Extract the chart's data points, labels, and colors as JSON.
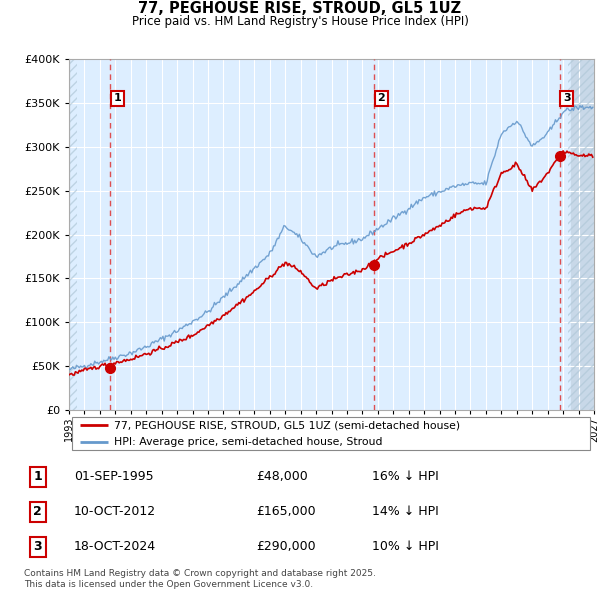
{
  "title": "77, PEGHOUSE RISE, STROUD, GL5 1UZ",
  "subtitle": "Price paid vs. HM Land Registry's House Price Index (HPI)",
  "ylim": [
    0,
    400000
  ],
  "xlim_start": 1993,
  "xlim_end": 2027,
  "sales": [
    {
      "num": 1,
      "date_str": "01-SEP-1995",
      "date_x": 1995.67,
      "price": 48000,
      "hpi_pct": "16% ↓ HPI"
    },
    {
      "num": 2,
      "date_str": "10-OCT-2012",
      "date_x": 2012.78,
      "price": 165000,
      "hpi_pct": "14% ↓ HPI"
    },
    {
      "num": 3,
      "date_str": "18-OCT-2024",
      "date_x": 2024.79,
      "price": 290000,
      "hpi_pct": "10% ↓ HPI"
    }
  ],
  "legend_line1": "77, PEGHOUSE RISE, STROUD, GL5 1UZ (semi-detached house)",
  "legend_line2": "HPI: Average price, semi-detached house, Stroud",
  "footnote": "Contains HM Land Registry data © Crown copyright and database right 2025.\nThis data is licensed under the Open Government Licence v3.0.",
  "chart_bg": "#ddeeff",
  "grid_color": "#ffffff",
  "sale_color": "#cc0000",
  "hpi_color": "#6699cc",
  "vline_color": "#dd3333",
  "hatch_bg": "#c8d8e8",
  "label_box_color": "#cc0000",
  "yticks": [
    0,
    50000,
    100000,
    150000,
    200000,
    250000,
    300000,
    350000,
    400000
  ],
  "hpi_key_years": [
    1993,
    1995,
    1997,
    1998,
    2000,
    2002,
    2004,
    2006,
    2007,
    2008,
    2009,
    2010,
    2012,
    2014,
    2016,
    2018,
    2019,
    2020,
    2021,
    2022,
    2023,
    2024,
    2025,
    2026
  ],
  "hpi_key_vals": [
    46000,
    55000,
    65000,
    72000,
    90000,
    112000,
    145000,
    178000,
    210000,
    195000,
    175000,
    185000,
    195000,
    218000,
    242000,
    255000,
    258000,
    258000,
    315000,
    330000,
    300000,
    315000,
    340000,
    345000
  ],
  "price_key_years": [
    1993,
    1995,
    1997,
    1999,
    2001,
    2003,
    2005,
    2007,
    2008,
    2009,
    2010,
    2012,
    2013,
    2015,
    2017,
    2018,
    2019,
    2020,
    2021,
    2022,
    2023,
    2024,
    2025,
    2026
  ],
  "price_key_vals": [
    40000,
    50000,
    58000,
    70000,
    85000,
    108000,
    135000,
    168000,
    158000,
    138000,
    148000,
    160000,
    172000,
    190000,
    210000,
    222000,
    230000,
    230000,
    270000,
    280000,
    250000,
    270000,
    295000,
    290000
  ],
  "noise_seed": 42,
  "hpi_noise": 1500,
  "price_noise": 1200
}
